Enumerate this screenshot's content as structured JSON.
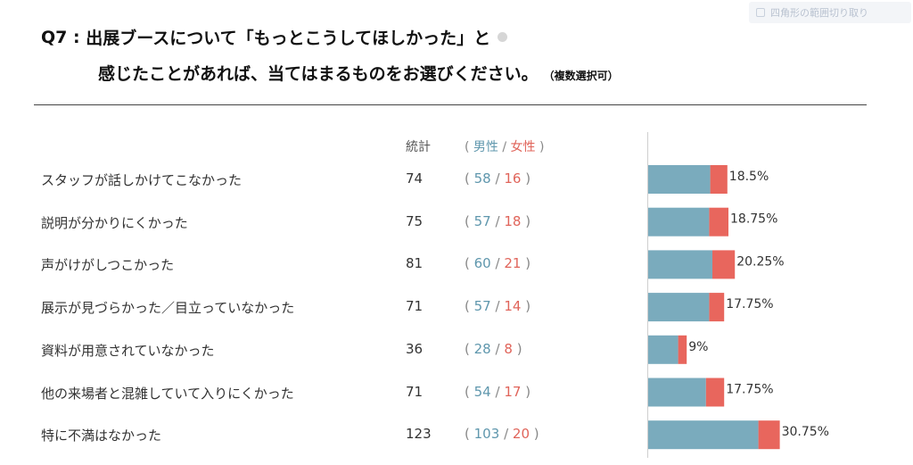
{
  "header_widget": {
    "text": "四角形の範囲切り取り"
  },
  "title": {
    "prefix": "Q7",
    "line1": "出展ブースについて「もっとこうしてほしかった」と",
    "line2": "感じたことがあれば、当てはまるものをお選びください。",
    "note": "（複数選択可）"
  },
  "headers": {
    "total": "統計",
    "open": "(",
    "male": "男性",
    "sep": "/",
    "female": "女性",
    "close": ")"
  },
  "colors": {
    "male": "#7aabbd",
    "female": "#e8665d"
  },
  "rows": [
    {
      "label": "スタッフが話しかけてこなかった",
      "total": "74",
      "male": "58",
      "female": "16",
      "pct": "18.5%"
    },
    {
      "label": "説明が分かりにくかった",
      "total": "75",
      "male": "57",
      "female": "18",
      "pct": "18.75%"
    },
    {
      "label": "声がけがしつこかった",
      "total": "81",
      "male": "60",
      "female": "21",
      "pct": "20.25%"
    },
    {
      "label": "展示が見づらかった／目立っていなかった",
      "total": "71",
      "male": "57",
      "female": "14",
      "pct": "17.75%"
    },
    {
      "label": "資料が用意されていなかった",
      "total": "36",
      "male": "28",
      "female": "8",
      "pct": "9%"
    },
    {
      "label": "他の来場者と混雑していて入りにくかった",
      "total": "71",
      "male": "54",
      "female": "17",
      "pct": "17.75%"
    },
    {
      "label": "特に不満はなかった",
      "total": "123",
      "male": "103",
      "female": "20",
      "pct": "30.75%"
    }
  ],
  "chart_data": {
    "type": "bar",
    "orientation": "horizontal",
    "stacked": true,
    "categories": [
      "スタッフが話しかけてこなかった",
      "説明が分かりにくかった",
      "声がけがしつこかった",
      "展示が見づらかった／目立っていなかった",
      "資料が用意されていなかった",
      "他の来場者と混雑していて入りにくかった",
      "特に不満はなかった"
    ],
    "series": [
      {
        "name": "男性",
        "values": [
          58,
          57,
          60,
          57,
          28,
          54,
          103
        ]
      },
      {
        "name": "女性",
        "values": [
          16,
          18,
          21,
          14,
          8,
          17,
          20
        ]
      }
    ],
    "data_labels": [
      "18.5%",
      "18.75%",
      "20.25%",
      "17.75%",
      "9%",
      "17.75%",
      "30.75%"
    ]
  }
}
